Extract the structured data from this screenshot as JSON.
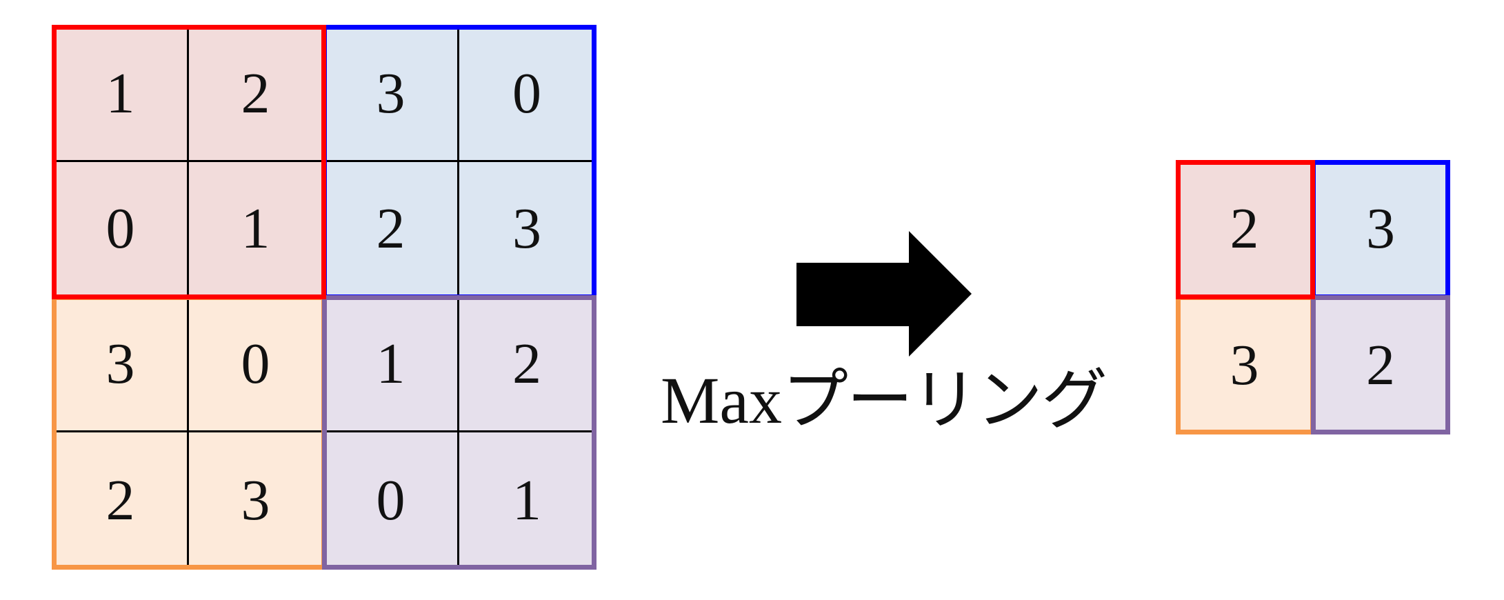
{
  "input_grid": {
    "values": [
      [
        "1",
        "2",
        "3",
        "0"
      ],
      [
        "0",
        "1",
        "2",
        "3"
      ],
      [
        "3",
        "0",
        "1",
        "2"
      ],
      [
        "2",
        "3",
        "0",
        "1"
      ]
    ]
  },
  "output_grid": {
    "values": [
      [
        "2",
        "3"
      ],
      [
        "3",
        "2"
      ]
    ]
  },
  "operation_label": {
    "latin": "Max",
    "japanese": "プーリング"
  },
  "colors": {
    "top_left_border": "#ff0000",
    "top_right_border": "#0000ff",
    "bottom_left_border": "#f79646",
    "bottom_right_border": "#8064a2",
    "top_left_fill": "#f2dcdb",
    "top_right_fill": "#dce6f2",
    "bottom_left_fill": "#fdeada",
    "bottom_right_fill": "#e6e0ec",
    "grid_line": "#000000",
    "arrow": "#000000"
  }
}
